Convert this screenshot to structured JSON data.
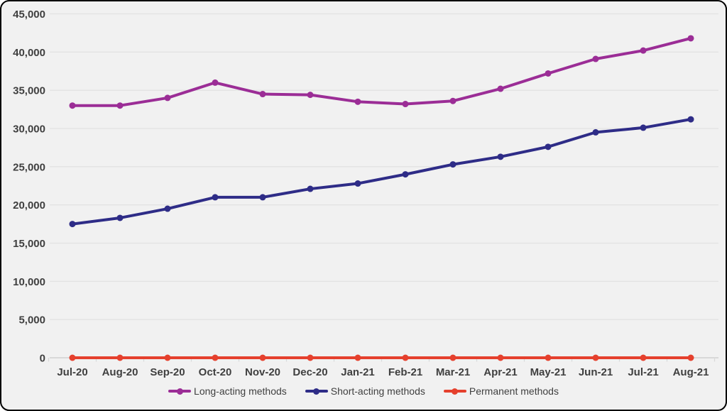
{
  "chart": {
    "background_color": "#f1f1f1",
    "border_color": "#000000",
    "grid_color": "#e2e2e2",
    "axis_line_color": "#d9d9d9",
    "label_color": "#3f3f3f",
    "y_axis_tick_labels": [
      "0",
      "5,000",
      "10,000",
      "15,000",
      "20,000",
      "25,000",
      "30,000",
      "35,000",
      "40,000",
      "45,000"
    ]
  },
  "chart_data": {
    "type": "line",
    "title": "",
    "xlabel": "",
    "ylabel": "",
    "ylim": [
      0,
      45000
    ],
    "y_step": 5000,
    "grid": "horizontal",
    "legend_position": "bottom",
    "marker": "circle",
    "categories": [
      "Jul-20",
      "Aug-20",
      "Sep-20",
      "Oct-20",
      "Nov-20",
      "Dec-20",
      "Jan-21",
      "Feb-21",
      "Mar-21",
      "Apr-21",
      "May-21",
      "Jun-21",
      "Jul-21",
      "Aug-21"
    ],
    "series": [
      {
        "name": "Long-acting methods",
        "color": "#9b2d96",
        "values": [
          33000,
          33000,
          34000,
          36000,
          34500,
          34400,
          33500,
          33200,
          33600,
          35200,
          37200,
          39100,
          40200,
          41800
        ]
      },
      {
        "name": "Short-acting methods",
        "color": "#2e2c87",
        "values": [
          17500,
          18300,
          19500,
          21000,
          21000,
          22100,
          22800,
          24000,
          25300,
          26300,
          27600,
          29500,
          30100,
          31200
        ]
      },
      {
        "name": "Permanent methods",
        "color": "#e5402d",
        "values": [
          0,
          0,
          0,
          0,
          0,
          0,
          0,
          0,
          0,
          0,
          0,
          0,
          0,
          0
        ]
      }
    ]
  }
}
